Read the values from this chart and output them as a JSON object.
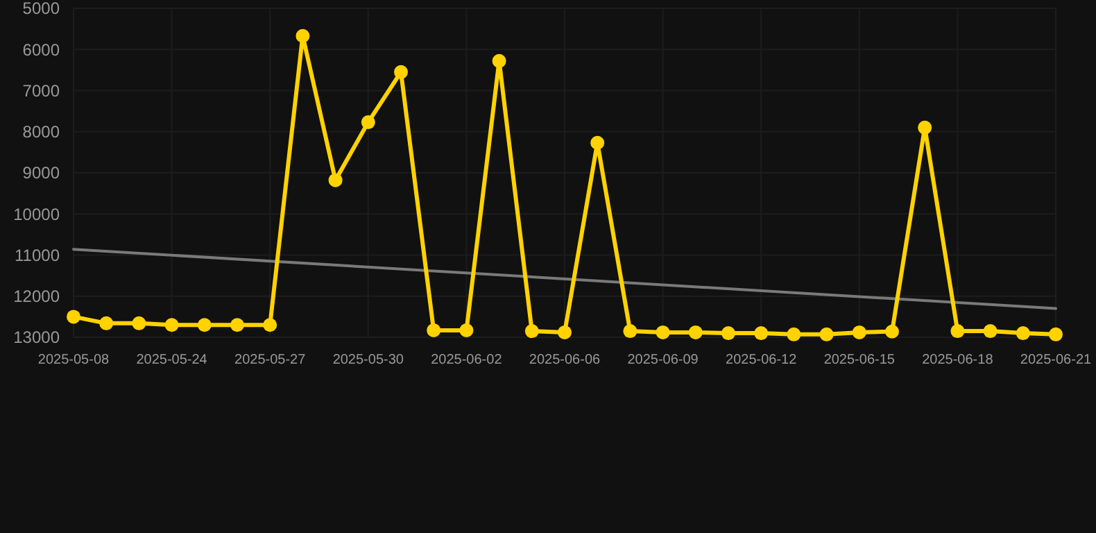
{
  "chart_data": {
    "type": "line",
    "categories": [
      "2025-05-08",
      null,
      null,
      "2025-05-24",
      null,
      null,
      "2025-05-27",
      null,
      null,
      "2025-05-30",
      null,
      null,
      "2025-06-02",
      null,
      null,
      "2025-06-06",
      null,
      null,
      "2025-06-09",
      null,
      null,
      "2025-06-12",
      null,
      null,
      "2025-06-15",
      null,
      null,
      "2025-06-18",
      null,
      null,
      "2025-06-21"
    ],
    "series": [
      {
        "color": "#ffd200",
        "marker": "circle",
        "values": [
          12500,
          12660,
          12660,
          12700,
          12700,
          12700,
          12700,
          5670,
          9180,
          7770,
          6550,
          12830,
          12830,
          6280,
          12850,
          12880,
          8270,
          12850,
          12880,
          12880,
          12900,
          12900,
          12930,
          12930,
          12880,
          12860,
          7900,
          12850,
          12850,
          12900,
          12930
        ]
      },
      {
        "type": "line",
        "color": "#7a7a7a",
        "marker": "none",
        "values": [
          10860,
          null,
          null,
          null,
          null,
          null,
          null,
          null,
          null,
          null,
          null,
          null,
          null,
          null,
          null,
          null,
          null,
          null,
          null,
          null,
          null,
          null,
          null,
          null,
          null,
          null,
          null,
          null,
          null,
          null,
          12300
        ]
      }
    ],
    "ylim": [
      13000,
      5000
    ],
    "yticks": [
      5000,
      6000,
      7000,
      8000,
      9000,
      10000,
      11000,
      12000,
      13000
    ],
    "grid": true
  }
}
